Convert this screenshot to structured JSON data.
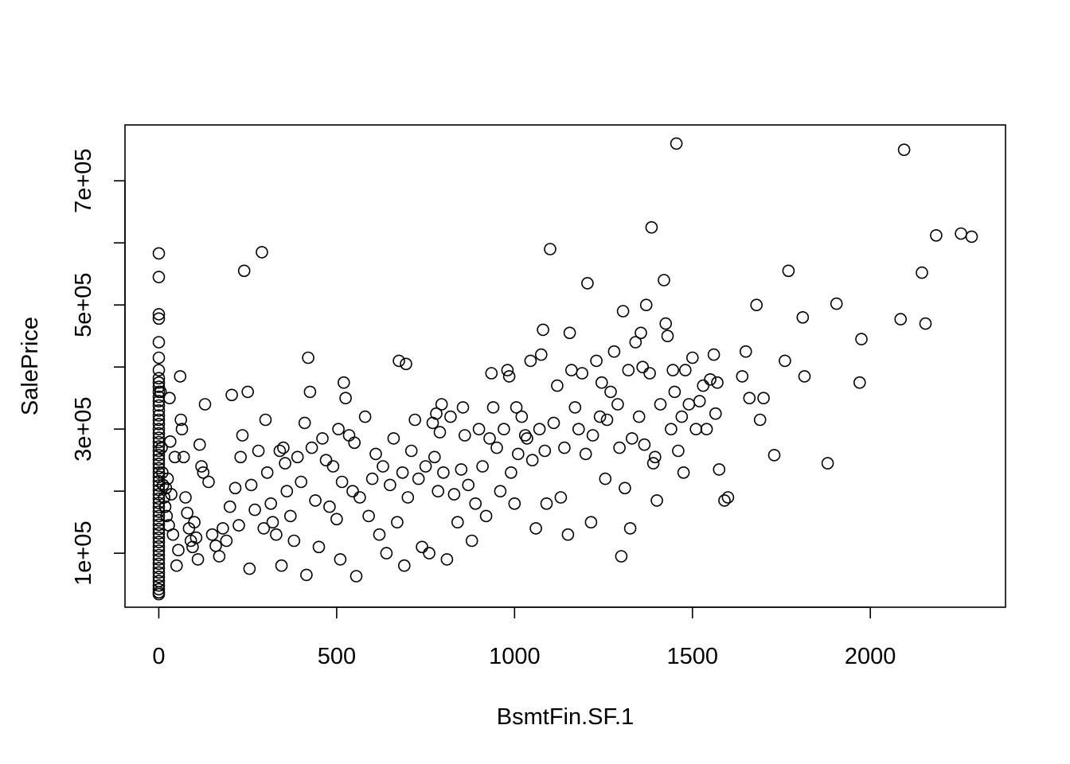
{
  "chart_data": {
    "type": "scatter",
    "title": "",
    "xlabel": "BsmtFin.SF.1",
    "ylabel": "SalePrice",
    "xlim": [
      -95,
      2380
    ],
    "ylim": [
      13000,
      790000
    ],
    "x_ticks": [
      0,
      500,
      1000,
      1500,
      2000
    ],
    "x_tick_labels": [
      "0",
      "500",
      "1000",
      "1500",
      "2000"
    ],
    "y_ticks": [
      100000,
      200000,
      300000,
      400000,
      500000,
      600000,
      700000
    ],
    "y_tick_labels": [
      "1e+05",
      "",
      "3e+05",
      "",
      "5e+05",
      "",
      "7e+05"
    ],
    "grid": false,
    "marker": "open-circle",
    "point_color": "#000000",
    "points": [
      [
        0,
        583000
      ],
      [
        0,
        545000
      ],
      [
        0,
        485000
      ],
      [
        0,
        478000
      ],
      [
        0,
        440000
      ],
      [
        0,
        415000
      ],
      [
        0,
        395000
      ],
      [
        0,
        382000
      ],
      [
        0,
        375000
      ],
      [
        0,
        368000
      ],
      [
        0,
        360000
      ],
      [
        0,
        352000
      ],
      [
        0,
        345000
      ],
      [
        0,
        338000
      ],
      [
        0,
        330000
      ],
      [
        0,
        322000
      ],
      [
        0,
        315000
      ],
      [
        0,
        308000
      ],
      [
        0,
        300000
      ],
      [
        0,
        293000
      ],
      [
        0,
        286000
      ],
      [
        0,
        279000
      ],
      [
        0,
        272000
      ],
      [
        0,
        265000
      ],
      [
        0,
        258000
      ],
      [
        0,
        251000
      ],
      [
        0,
        244000
      ],
      [
        0,
        237000
      ],
      [
        0,
        230000
      ],
      [
        0,
        223000
      ],
      [
        0,
        216000
      ],
      [
        0,
        209000
      ],
      [
        0,
        202000
      ],
      [
        0,
        195000
      ],
      [
        0,
        188000
      ],
      [
        0,
        181000
      ],
      [
        0,
        174000
      ],
      [
        0,
        167000
      ],
      [
        0,
        160000
      ],
      [
        0,
        153000
      ],
      [
        0,
        146000
      ],
      [
        0,
        139000
      ],
      [
        0,
        132000
      ],
      [
        0,
        125000
      ],
      [
        0,
        118000
      ],
      [
        0,
        111000
      ],
      [
        0,
        104000
      ],
      [
        0,
        97000
      ],
      [
        0,
        90000
      ],
      [
        0,
        83000
      ],
      [
        0,
        76000
      ],
      [
        0,
        69000
      ],
      [
        0,
        62000
      ],
      [
        0,
        55000
      ],
      [
        0,
        48000
      ],
      [
        0,
        42000
      ],
      [
        0,
        37000
      ],
      [
        0,
        34000
      ],
      [
        5,
        360000
      ],
      [
        8,
        270000
      ],
      [
        10,
        230000
      ],
      [
        12,
        210000
      ],
      [
        15,
        190000
      ],
      [
        18,
        175000
      ],
      [
        20,
        205000
      ],
      [
        22,
        160000
      ],
      [
        25,
        220000
      ],
      [
        28,
        145000
      ],
      [
        30,
        350000
      ],
      [
        32,
        280000
      ],
      [
        35,
        195000
      ],
      [
        40,
        130000
      ],
      [
        45,
        255000
      ],
      [
        50,
        80000
      ],
      [
        55,
        105000
      ],
      [
        60,
        385000
      ],
      [
        62,
        315000
      ],
      [
        65,
        300000
      ],
      [
        70,
        255000
      ],
      [
        75,
        190000
      ],
      [
        80,
        165000
      ],
      [
        85,
        140000
      ],
      [
        90,
        120000
      ],
      [
        95,
        110000
      ],
      [
        100,
        150000
      ],
      [
        105,
        125000
      ],
      [
        110,
        90000
      ],
      [
        115,
        275000
      ],
      [
        120,
        240000
      ],
      [
        125,
        230000
      ],
      [
        130,
        340000
      ],
      [
        140,
        215000
      ],
      [
        150,
        130000
      ],
      [
        160,
        112000
      ],
      [
        170,
        95000
      ],
      [
        180,
        140000
      ],
      [
        190,
        120000
      ],
      [
        200,
        175000
      ],
      [
        205,
        355000
      ],
      [
        215,
        205000
      ],
      [
        225,
        145000
      ],
      [
        230,
        255000
      ],
      [
        235,
        290000
      ],
      [
        240,
        555000
      ],
      [
        250,
        360000
      ],
      [
        255,
        75000
      ],
      [
        260,
        210000
      ],
      [
        270,
        170000
      ],
      [
        280,
        265000
      ],
      [
        290,
        585000
      ],
      [
        295,
        140000
      ],
      [
        300,
        315000
      ],
      [
        305,
        230000
      ],
      [
        315,
        180000
      ],
      [
        320,
        150000
      ],
      [
        330,
        130000
      ],
      [
        340,
        265000
      ],
      [
        345,
        80000
      ],
      [
        350,
        270000
      ],
      [
        355,
        245000
      ],
      [
        360,
        200000
      ],
      [
        370,
        160000
      ],
      [
        380,
        120000
      ],
      [
        390,
        255000
      ],
      [
        400,
        215000
      ],
      [
        410,
        310000
      ],
      [
        415,
        65000
      ],
      [
        420,
        415000
      ],
      [
        425,
        360000
      ],
      [
        430,
        270000
      ],
      [
        440,
        185000
      ],
      [
        450,
        110000
      ],
      [
        460,
        285000
      ],
      [
        470,
        250000
      ],
      [
        480,
        175000
      ],
      [
        490,
        240000
      ],
      [
        500,
        155000
      ],
      [
        505,
        300000
      ],
      [
        510,
        90000
      ],
      [
        515,
        215000
      ],
      [
        520,
        375000
      ],
      [
        525,
        350000
      ],
      [
        535,
        290000
      ],
      [
        545,
        200000
      ],
      [
        550,
        278000
      ],
      [
        555,
        63000
      ],
      [
        565,
        190000
      ],
      [
        580,
        320000
      ],
      [
        590,
        160000
      ],
      [
        600,
        220000
      ],
      [
        610,
        260000
      ],
      [
        620,
        130000
      ],
      [
        630,
        240000
      ],
      [
        640,
        100000
      ],
      [
        650,
        210000
      ],
      [
        660,
        285000
      ],
      [
        670,
        150000
      ],
      [
        675,
        410000
      ],
      [
        685,
        230000
      ],
      [
        690,
        80000
      ],
      [
        695,
        405000
      ],
      [
        700,
        190000
      ],
      [
        710,
        265000
      ],
      [
        720,
        315000
      ],
      [
        730,
        220000
      ],
      [
        740,
        110000
      ],
      [
        750,
        240000
      ],
      [
        760,
        100000
      ],
      [
        770,
        310000
      ],
      [
        775,
        255000
      ],
      [
        780,
        325000
      ],
      [
        785,
        200000
      ],
      [
        790,
        295000
      ],
      [
        795,
        340000
      ],
      [
        800,
        230000
      ],
      [
        810,
        90000
      ],
      [
        820,
        320000
      ],
      [
        830,
        195000
      ],
      [
        840,
        150000
      ],
      [
        850,
        235000
      ],
      [
        855,
        335000
      ],
      [
        860,
        290000
      ],
      [
        870,
        210000
      ],
      [
        880,
        120000
      ],
      [
        890,
        180000
      ],
      [
        900,
        300000
      ],
      [
        910,
        240000
      ],
      [
        920,
        160000
      ],
      [
        930,
        285000
      ],
      [
        935,
        390000
      ],
      [
        940,
        335000
      ],
      [
        950,
        270000
      ],
      [
        960,
        200000
      ],
      [
        970,
        300000
      ],
      [
        980,
        395000
      ],
      [
        985,
        385000
      ],
      [
        990,
        230000
      ],
      [
        1000,
        180000
      ],
      [
        1005,
        335000
      ],
      [
        1010,
        260000
      ],
      [
        1020,
        320000
      ],
      [
        1030,
        290000
      ],
      [
        1035,
        285000
      ],
      [
        1045,
        410000
      ],
      [
        1050,
        250000
      ],
      [
        1060,
        140000
      ],
      [
        1070,
        300000
      ],
      [
        1075,
        420000
      ],
      [
        1080,
        460000
      ],
      [
        1085,
        265000
      ],
      [
        1090,
        180000
      ],
      [
        1100,
        590000
      ],
      [
        1110,
        310000
      ],
      [
        1120,
        370000
      ],
      [
        1130,
        190000
      ],
      [
        1140,
        270000
      ],
      [
        1150,
        130000
      ],
      [
        1155,
        455000
      ],
      [
        1160,
        395000
      ],
      [
        1170,
        335000
      ],
      [
        1180,
        300000
      ],
      [
        1190,
        390000
      ],
      [
        1200,
        260000
      ],
      [
        1205,
        535000
      ],
      [
        1215,
        150000
      ],
      [
        1220,
        290000
      ],
      [
        1230,
        410000
      ],
      [
        1240,
        320000
      ],
      [
        1245,
        375000
      ],
      [
        1255,
        220000
      ],
      [
        1260,
        315000
      ],
      [
        1270,
        360000
      ],
      [
        1280,
        425000
      ],
      [
        1290,
        340000
      ],
      [
        1295,
        270000
      ],
      [
        1300,
        95000
      ],
      [
        1305,
        490000
      ],
      [
        1310,
        205000
      ],
      [
        1320,
        395000
      ],
      [
        1325,
        140000
      ],
      [
        1330,
        285000
      ],
      [
        1340,
        440000
      ],
      [
        1350,
        320000
      ],
      [
        1355,
        455000
      ],
      [
        1360,
        400000
      ],
      [
        1365,
        275000
      ],
      [
        1370,
        500000
      ],
      [
        1380,
        390000
      ],
      [
        1385,
        625000
      ],
      [
        1390,
        245000
      ],
      [
        1395,
        255000
      ],
      [
        1400,
        185000
      ],
      [
        1410,
        340000
      ],
      [
        1420,
        540000
      ],
      [
        1425,
        470000
      ],
      [
        1430,
        450000
      ],
      [
        1440,
        300000
      ],
      [
        1445,
        395000
      ],
      [
        1450,
        360000
      ],
      [
        1455,
        760000
      ],
      [
        1460,
        265000
      ],
      [
        1470,
        320000
      ],
      [
        1475,
        230000
      ],
      [
        1480,
        395000
      ],
      [
        1490,
        340000
      ],
      [
        1500,
        415000
      ],
      [
        1510,
        300000
      ],
      [
        1520,
        345000
      ],
      [
        1530,
        370000
      ],
      [
        1540,
        300000
      ],
      [
        1550,
        380000
      ],
      [
        1560,
        420000
      ],
      [
        1565,
        325000
      ],
      [
        1570,
        375000
      ],
      [
        1575,
        235000
      ],
      [
        1590,
        185000
      ],
      [
        1600,
        190000
      ],
      [
        1640,
        385000
      ],
      [
        1650,
        425000
      ],
      [
        1660,
        350000
      ],
      [
        1680,
        500000
      ],
      [
        1690,
        315000
      ],
      [
        1700,
        350000
      ],
      [
        1730,
        258000
      ],
      [
        1760,
        410000
      ],
      [
        1770,
        555000
      ],
      [
        1810,
        480000
      ],
      [
        1815,
        385000
      ],
      [
        1880,
        245000
      ],
      [
        1905,
        502000
      ],
      [
        1970,
        375000
      ],
      [
        1975,
        445000
      ],
      [
        2085,
        477000
      ],
      [
        2095,
        750000
      ],
      [
        2145,
        552000
      ],
      [
        2155,
        470000
      ],
      [
        2185,
        612000
      ],
      [
        2255,
        615000
      ],
      [
        2285,
        610000
      ]
    ]
  }
}
